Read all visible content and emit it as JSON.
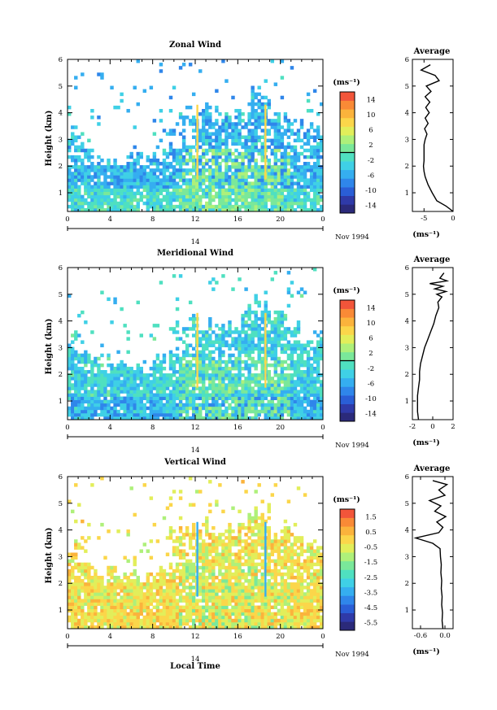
{
  "figure": {
    "date_label": "Nov 1994",
    "day_label": "14",
    "xlabel": "Local Time",
    "ylabel": "Height (km)",
    "profile_title": "Average",
    "colorbar_unit": "(ms⁻¹)",
    "profile_unit": "(ms⁻¹)"
  },
  "chart_data": [
    {
      "type": "heatmap",
      "title": "Zonal Wind",
      "xlabel": "",
      "ylabel": "Height (km)",
      "x_ticks": [
        "0",
        "4",
        "8",
        "12",
        "16",
        "20",
        "0"
      ],
      "xlim": [
        0,
        24
      ],
      "ylim": [
        0.3,
        6
      ],
      "y_ticks": [
        "1",
        "2",
        "3",
        "4",
        "5",
        "6"
      ],
      "colorbar": {
        "ticks": [
          "14",
          "10",
          "6",
          "2",
          "-2",
          "-6",
          "-10",
          "-14"
        ],
        "range": [
          -16,
          16
        ],
        "zero_line": true
      },
      "field": {
        "base": -5,
        "low_level": -2,
        "convective_value": 2,
        "hole_fraction": 0.3
      },
      "profile": {
        "title": "Average",
        "xlabel": "(ms⁻¹)",
        "x_ticks": [
          "-5",
          "0"
        ],
        "xlim": [
          -7,
          0
        ],
        "heights": [
          0.3,
          0.5,
          0.7,
          1.0,
          1.3,
          1.6,
          1.8,
          2.0,
          2.2,
          2.5,
          2.8,
          3.0,
          3.2,
          3.4,
          3.6,
          3.8,
          4.0,
          4.2,
          4.4,
          4.6,
          4.8,
          5.0,
          5.2,
          5.4,
          5.6,
          5.8
        ],
        "values": [
          0.0,
          -1.2,
          -2.8,
          -3.6,
          -4.3,
          -4.8,
          -5.0,
          -5.1,
          -5.0,
          -5.0,
          -5.0,
          -4.8,
          -4.5,
          -4.9,
          -4.3,
          -4.8,
          -4.1,
          -4.7,
          -4.0,
          -4.8,
          -3.8,
          -4.6,
          -2.4,
          -3.1,
          -5.5,
          -3.9
        ]
      }
    },
    {
      "type": "heatmap",
      "title": "Meridional Wind",
      "xlabel": "",
      "ylabel": "Height (km)",
      "x_ticks": [
        "0",
        "4",
        "8",
        "12",
        "16",
        "20",
        "0"
      ],
      "xlim": [
        0,
        24
      ],
      "ylim": [
        0.3,
        6
      ],
      "y_ticks": [
        "1",
        "2",
        "3",
        "4",
        "5",
        "6"
      ],
      "colorbar": {
        "ticks": [
          "14",
          "10",
          "6",
          "2",
          "-2",
          "-6",
          "-10",
          "-14"
        ],
        "range": [
          -16,
          16
        ],
        "zero_line": true
      },
      "field": {
        "base": -3,
        "low_level": -5,
        "convective_value": 1.5,
        "hole_fraction": 0.25
      },
      "profile": {
        "title": "Average",
        "xlabel": "(ms⁻¹)",
        "x_ticks": [
          "-2",
          "0",
          "2"
        ],
        "xlim": [
          -2,
          2
        ],
        "heights": [
          0.3,
          0.6,
          0.9,
          1.2,
          1.5,
          1.8,
          2.1,
          2.4,
          2.7,
          3.0,
          3.3,
          3.6,
          3.9,
          4.2,
          4.5,
          4.7,
          4.9,
          5.0,
          5.1,
          5.2,
          5.3,
          5.4,
          5.5,
          5.6,
          5.8
        ],
        "values": [
          -1.4,
          -1.5,
          -1.5,
          -1.5,
          -1.4,
          -1.3,
          -1.3,
          -1.2,
          -1.0,
          -0.8,
          -0.5,
          -0.2,
          0.1,
          0.3,
          0.6,
          0.5,
          0.9,
          0.4,
          1.3,
          0.2,
          1.0,
          -0.3,
          1.4,
          0.7,
          1.1
        ]
      }
    },
    {
      "type": "heatmap",
      "title": "Vertical Wind",
      "xlabel": "Local Time",
      "ylabel": "Height (km)",
      "x_ticks": [
        "0",
        "4",
        "8",
        "12",
        "16",
        "20",
        "0"
      ],
      "xlim": [
        0,
        24
      ],
      "ylim": [
        0.3,
        6
      ],
      "y_ticks": [
        "1",
        "2",
        "3",
        "4",
        "5",
        "6"
      ],
      "colorbar": {
        "ticks": [
          "1.5",
          "0.5",
          "-0.5",
          "-1.5",
          "-2.5",
          "-3.5",
          "-4.5",
          "-5.5"
        ],
        "range": [
          -6,
          2
        ],
        "zero_line": false
      },
      "field": {
        "base": -0.3,
        "low_level": -0.2,
        "convective_value": -0.9,
        "hole_fraction": 0.2
      },
      "profile": {
        "title": "Average",
        "xlabel": "(ms⁻¹)",
        "x_ticks": [
          "-0.6",
          "0.0"
        ],
        "xlim": [
          -0.8,
          0.2
        ],
        "heights": [
          0.3,
          0.6,
          0.9,
          1.2,
          1.5,
          1.8,
          2.1,
          2.4,
          2.7,
          3.0,
          3.3,
          3.5,
          3.7,
          3.9,
          4.1,
          4.3,
          4.5,
          4.7,
          4.9,
          5.1,
          5.3,
          5.5,
          5.7,
          5.85
        ],
        "values": [
          -0.05,
          -0.07,
          -0.06,
          -0.08,
          -0.07,
          -0.09,
          -0.08,
          -0.1,
          -0.09,
          -0.11,
          -0.12,
          -0.3,
          -0.72,
          -0.15,
          -0.05,
          -0.2,
          0.02,
          -0.25,
          -0.1,
          -0.38,
          0.0,
          -0.15,
          0.05,
          -0.3
        ]
      }
    }
  ]
}
